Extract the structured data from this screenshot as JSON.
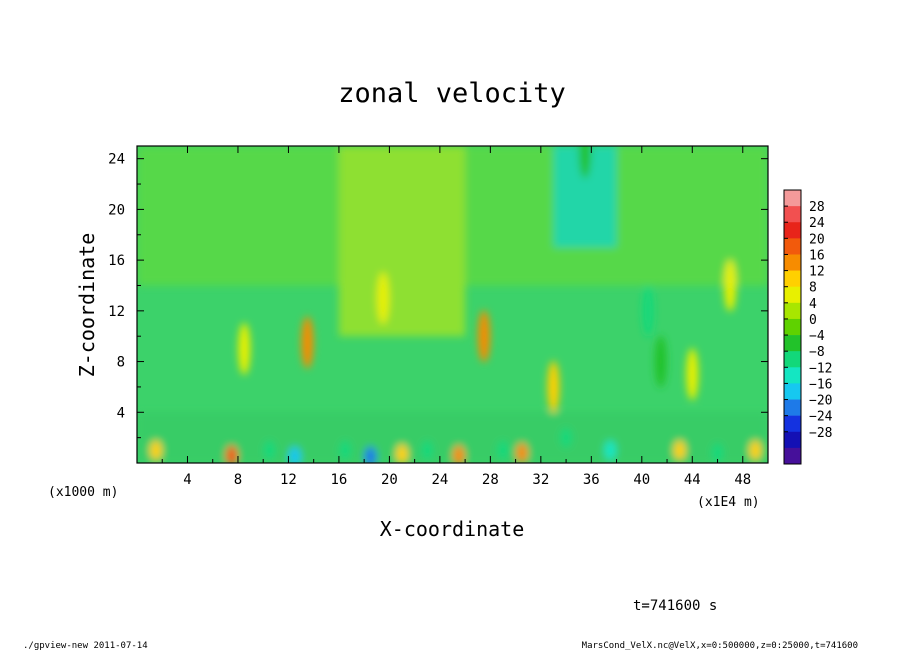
{
  "chart_data": {
    "type": "heatmap",
    "title": "zonal velocity",
    "xlabel": "X-coordinate",
    "ylabel": "Z-coordinate",
    "x_unit_label": "(x1E4 m)",
    "z_unit_label": "(x1000 m)",
    "xlim": [
      0,
      50
    ],
    "ylim": [
      0,
      25
    ],
    "x_ticks": [
      4,
      8,
      12,
      16,
      20,
      24,
      28,
      32,
      36,
      40,
      44,
      48
    ],
    "y_ticks": [
      4,
      8,
      12,
      16,
      20,
      24
    ],
    "colorbar_labels": [
      "28",
      "24",
      "20",
      "16",
      "12",
      "8",
      "4",
      "0",
      "−4",
      "−8",
      "−12",
      "−16",
      "−20",
      "−24",
      "−28"
    ],
    "colorbar_colors": [
      "#f49a9a",
      "#f25050",
      "#e8241a",
      "#f25a0c",
      "#f78c00",
      "#ffd000",
      "#e8f000",
      "#a8e600",
      "#5fd200",
      "#22c22a",
      "#12d87a",
      "#14e6c2",
      "#16c8f0",
      "#1e7ae8",
      "#1432e0",
      "#1410b4",
      "#46109a"
    ],
    "field_features": [
      {
        "x": 1.5,
        "z": 1,
        "value": 10
      },
      {
        "x": 7.5,
        "z": 0.6,
        "value": 20
      },
      {
        "x": 8.5,
        "z": 9,
        "value": 8
      },
      {
        "x": 10.5,
        "z": 1,
        "value": -12
      },
      {
        "x": 12.5,
        "z": 0.5,
        "value": -20
      },
      {
        "x": 13.5,
        "z": 9.5,
        "value": 16
      },
      {
        "x": 16.5,
        "z": 1,
        "value": -10
      },
      {
        "x": 18.5,
        "z": 0.5,
        "value": -24
      },
      {
        "x": 19.5,
        "z": 13,
        "value": 6
      },
      {
        "x": 21,
        "z": 0.7,
        "value": 10
      },
      {
        "x": 23,
        "z": 1,
        "value": -10
      },
      {
        "x": 25.5,
        "z": 0.6,
        "value": 14
      },
      {
        "x": 27.5,
        "z": 10,
        "value": 16
      },
      {
        "x": 29,
        "z": 1,
        "value": -12
      },
      {
        "x": 30.5,
        "z": 0.8,
        "value": 14
      },
      {
        "x": 33,
        "z": 6,
        "value": 10
      },
      {
        "x": 34,
        "z": 2,
        "value": -12
      },
      {
        "x": 35.5,
        "z": 24.5,
        "value": -8
      },
      {
        "x": 37.5,
        "z": 1,
        "value": -14
      },
      {
        "x": 40.5,
        "z": 12,
        "value": -12
      },
      {
        "x": 41.5,
        "z": 8,
        "value": -8
      },
      {
        "x": 43,
        "z": 1,
        "value": 12
      },
      {
        "x": 44,
        "z": 7,
        "value": 8
      },
      {
        "x": 46,
        "z": 0.8,
        "value": -12
      },
      {
        "x": 47,
        "z": 14,
        "value": 8
      },
      {
        "x": 49,
        "z": 1,
        "value": 10
      }
    ]
  },
  "time_label": "t=741600 s",
  "footer": {
    "left": "./gpview-new  2011-07-14",
    "right": "MarsCond_VelX.nc@VelX,x=0:500000,z=0:25000,t=741600"
  }
}
